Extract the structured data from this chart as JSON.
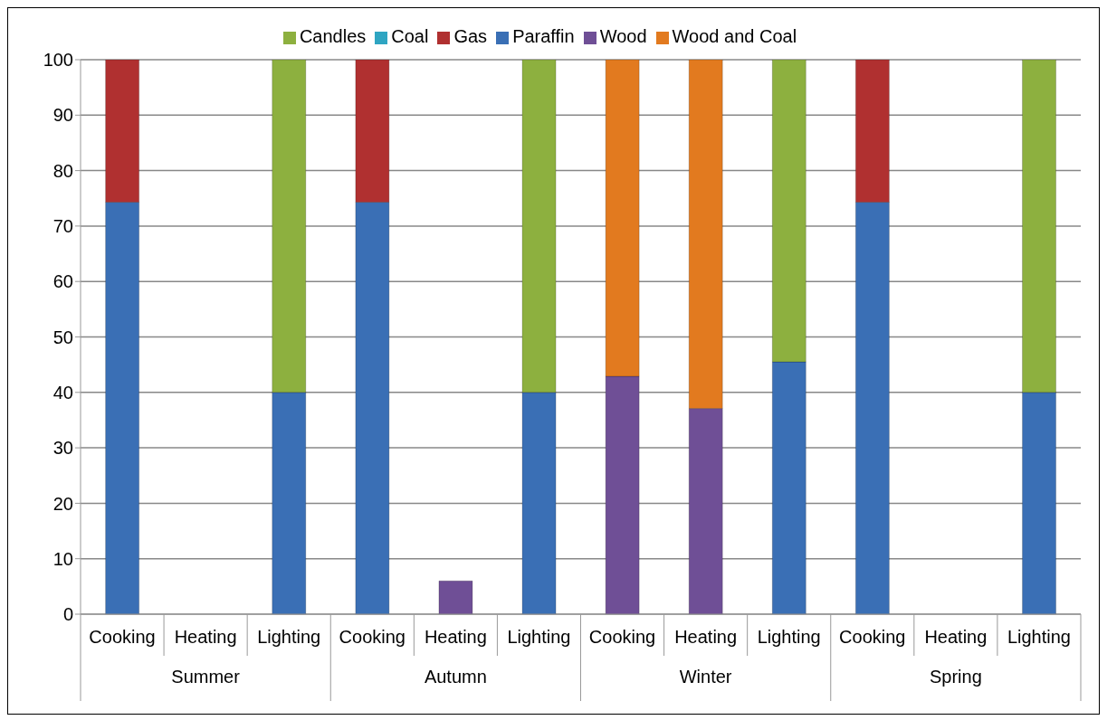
{
  "chart_data": {
    "type": "bar",
    "stacked": true,
    "categories": [
      "Cooking",
      "Heating",
      "Lighting",
      "Cooking",
      "Heating",
      "Lighting",
      "Cooking",
      "Heating",
      "Lighting",
      "Cooking",
      "Heating",
      "Lighting"
    ],
    "annotations": [
      "Summer",
      "Autumn",
      "Winter",
      "Spring"
    ],
    "series": [
      {
        "name": "Paraffin",
        "color": "#3a6fb5",
        "values": [
          74.3,
          null,
          40,
          74.3,
          null,
          40,
          null,
          null,
          45.5,
          74.3,
          null,
          40
        ]
      },
      {
        "name": "Gas",
        "color": "#b03030",
        "values": [
          25.7,
          null,
          null,
          25.7,
          null,
          null,
          null,
          null,
          null,
          25.7,
          null,
          null
        ]
      },
      {
        "name": "Candles",
        "color": "#8db03f",
        "values": [
          null,
          null,
          60,
          null,
          null,
          60,
          null,
          null,
          54.5,
          null,
          null,
          60
        ]
      },
      {
        "name": "Wood",
        "color": "#6f4f96",
        "values": [
          null,
          null,
          null,
          null,
          6,
          null,
          42.9,
          37.1,
          null,
          null,
          null,
          null
        ]
      },
      {
        "name": "Coal",
        "color": "#2fa5c2",
        "values": [
          null,
          null,
          null,
          null,
          null,
          null,
          null,
          null,
          null,
          null,
          null,
          null
        ]
      },
      {
        "name": "Wood and Coal",
        "color": "#e27a1f",
        "values": [
          null,
          null,
          null,
          null,
          null,
          null,
          57.1,
          62.9,
          null,
          null,
          null,
          null
        ]
      }
    ],
    "ylim": [
      0,
      100
    ],
    "yticks": [
      0,
      10,
      20,
      30,
      40,
      50,
      60,
      70,
      80,
      90,
      100
    ],
    "grid": "y",
    "legend": "top"
  }
}
